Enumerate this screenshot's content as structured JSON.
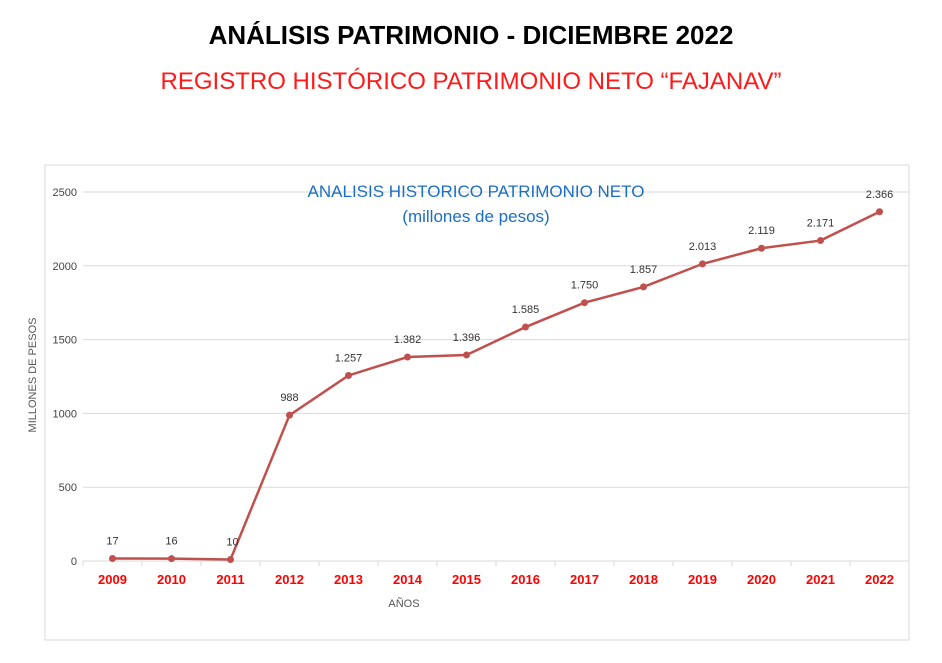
{
  "header": {
    "title": "ANÁLISIS PATRIMONIO -  DICIEMBRE 2022",
    "subtitle": "REGISTRO HISTÓRICO PATRIMONIO NETO “FAJANAV”"
  },
  "chart_data": {
    "type": "line",
    "title": "ANALISIS HISTORICO PATRIMONIO NETO",
    "subtitle": "(millones de pesos)",
    "xlabel": "AÑOS",
    "ylabel": "MILLONES DE PESOS",
    "ylim": [
      0,
      2500
    ],
    "yticks": [
      0,
      500,
      1000,
      1500,
      2000,
      2500
    ],
    "grid": true,
    "categories": [
      "2009",
      "2010",
      "2011",
      "2012",
      "2013",
      "2014",
      "2015",
      "2016",
      "2017",
      "2018",
      "2019",
      "2020",
      "2021",
      "2022"
    ],
    "values": [
      17,
      16,
      10,
      988,
      1257,
      1382,
      1396,
      1585,
      1750,
      1857,
      2013,
      2119,
      2171,
      2366
    ],
    "labels": [
      "17",
      "16",
      "10",
      "988",
      "1.257",
      "1.382",
      "1.396",
      "1.585",
      "1.750",
      "1.857",
      "2.013",
      "2.119",
      "2.171",
      "2.366"
    ],
    "line_color": "#c0504d",
    "tick_color": "#ff0000"
  }
}
